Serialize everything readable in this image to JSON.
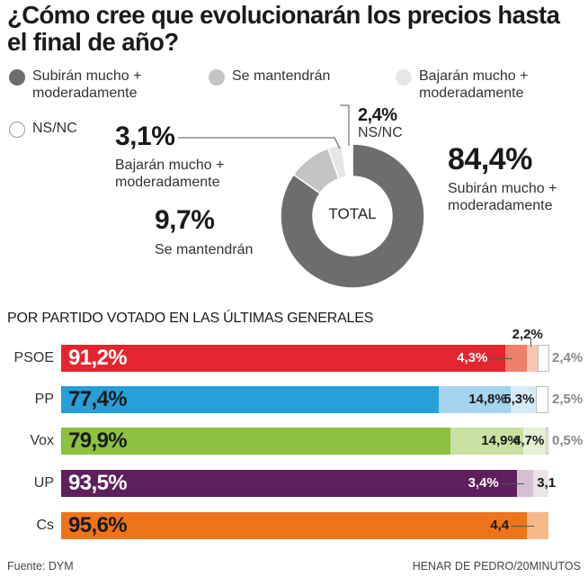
{
  "title": "¿Cómo cree que evolucionarán los precios hasta el final de año?",
  "legend": [
    {
      "label": "Subirán mucho + moderadamente",
      "color": "#6d6d6d",
      "icon": "dot-dark"
    },
    {
      "label": "Se mantendrán",
      "color": "#c4c4c4",
      "icon": "dot-mid"
    },
    {
      "label": "Bajarán mucho + moderadamente",
      "color": "#e6e6e6",
      "icon": "dot-light"
    },
    {
      "label": "NS/NC",
      "color": "#ffffff",
      "icon": "dot-empty"
    }
  ],
  "donut": {
    "center_label": "TOTAL",
    "callouts": [
      {
        "value": "84,4%",
        "label": "Subirán mucho + moderadamente"
      },
      {
        "value": "9,7%",
        "label": "Se mantendrán"
      },
      {
        "value": "3,1%",
        "label": "Bajarán mucho + moderadamente"
      },
      {
        "value": "2,4%",
        "label": "NS/NC"
      }
    ]
  },
  "section_title": "POR PARTIDO VOTADO EN LAS ÚLTIMAS GENERALES",
  "footer": {
    "source": "Fuente: DYM",
    "credit": "HENAR DE PEDRO/20MINUTOS"
  },
  "chart_data": [
    {
      "type": "pie",
      "title": "TOTAL",
      "categories": [
        "Subirán mucho + moderadamente",
        "Se mantendrán",
        "Bajarán mucho + moderadamente",
        "NS/NC"
      ],
      "values": [
        84.4,
        9.7,
        3.1,
        2.4
      ],
      "colors": [
        "#6d6d6d",
        "#c4c4c4",
        "#e6e6e6",
        "#ffffff"
      ]
    },
    {
      "type": "bar",
      "orientation": "horizontal",
      "stacked": true,
      "title": "POR PARTIDO VOTADO EN LAS ÚLTIMAS GENERALES",
      "categories": [
        "PSOE",
        "PP",
        "Vox",
        "UP",
        "Cs"
      ],
      "colors": {
        "PSOE": [
          "#e32530",
          "#ef8069",
          "#f6c6b4",
          "#ffffff"
        ],
        "PP": [
          "#279fd8",
          "#a6d3ee",
          "#d6ebf8",
          "#ffffff"
        ],
        "Vox": [
          "#8cc23f",
          "#c8e1a2",
          "#e5f0d4",
          "#ffffff"
        ],
        "UP": [
          "#5e1f5c",
          "#d4c0d3",
          "#ece3eb",
          "#ffffff"
        ],
        "Cs": [
          "#ee741c",
          "#f6b98b",
          "#fbdfc8",
          "#ffffff"
        ]
      },
      "series": [
        {
          "values": [
            91.2,
            77.4,
            79.9,
            93.5,
            95.6
          ],
          "labels": [
            "91,2%",
            "77,4%",
            "79,9%",
            "93,5%",
            "95,6%"
          ]
        },
        {
          "values": [
            4.3,
            14.8,
            14.9,
            3.4,
            4.4
          ],
          "labels": [
            "4,3%",
            "14,8%",
            "14,9%",
            "3,4%",
            "4,4"
          ]
        },
        {
          "values": [
            2.2,
            5.3,
            4.7,
            3.1,
            0
          ],
          "labels": [
            "2,2%",
            "5,3%",
            "4,7%",
            "3,1",
            ""
          ]
        },
        {
          "values": [
            2.4,
            2.5,
            0.5,
            0,
            0
          ],
          "labels": [
            "2,4%",
            "2,5%",
            "0,5%",
            "",
            ""
          ]
        }
      ],
      "xlim": [
        0,
        100
      ]
    }
  ]
}
